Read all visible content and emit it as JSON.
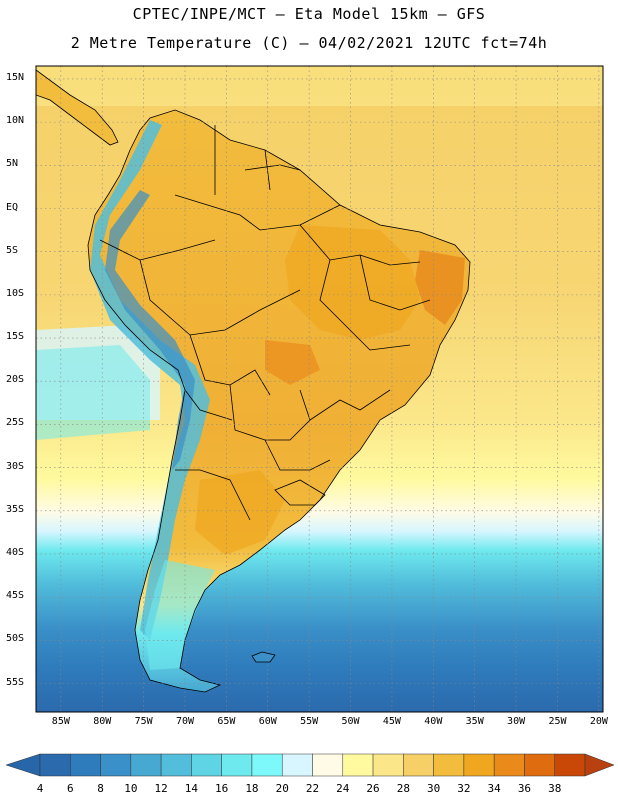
{
  "header": {
    "line1": "CPTEC/INPE/MCT –  Eta Model 15km – GFS",
    "line2": "2 Metre Temperature (C) – 04/02/2021 12UTC fct=74h"
  },
  "map": {
    "lat_labels": [
      "15N",
      "10N",
      "5N",
      "EQ",
      "5S",
      "10S",
      "15S",
      "20S",
      "25S",
      "30S",
      "35S",
      "40S",
      "45S",
      "50S",
      "55S"
    ],
    "lat_values": [
      15,
      10,
      5,
      0,
      -5,
      -10,
      -15,
      -20,
      -25,
      -30,
      -35,
      -40,
      -45,
      -50,
      -55
    ],
    "lon_labels": [
      "85W",
      "80W",
      "75W",
      "70W",
      "65W",
      "60W",
      "55W",
      "50W",
      "45W",
      "40W",
      "35W",
      "30W",
      "25W",
      "20W"
    ],
    "lon_values": [
      -85,
      -80,
      -75,
      -70,
      -65,
      -60,
      -55,
      -50,
      -45,
      -40,
      -35,
      -30,
      -25,
      -20
    ]
  },
  "colorbar": {
    "labels": [
      "4",
      "6",
      "8",
      "10",
      "12",
      "14",
      "16",
      "18",
      "20",
      "22",
      "24",
      "26",
      "28",
      "30",
      "32",
      "34",
      "36",
      "38"
    ],
    "colors": [
      "#2b6aad",
      "#2f7cbc",
      "#3a90c8",
      "#47a8d2",
      "#52bedb",
      "#5fd4e4",
      "#6ee9ee",
      "#7ef9fb",
      "#d8f6ff",
      "#fffbe6",
      "#fffa9f",
      "#fbe78a",
      "#f6d067",
      "#f2bc3d",
      "#f0a71f",
      "#e98a1b",
      "#e06c10",
      "#c94707"
    ],
    "left_arrow_color": "#2766a8",
    "right_arrow_color": "#b8410f"
  }
}
